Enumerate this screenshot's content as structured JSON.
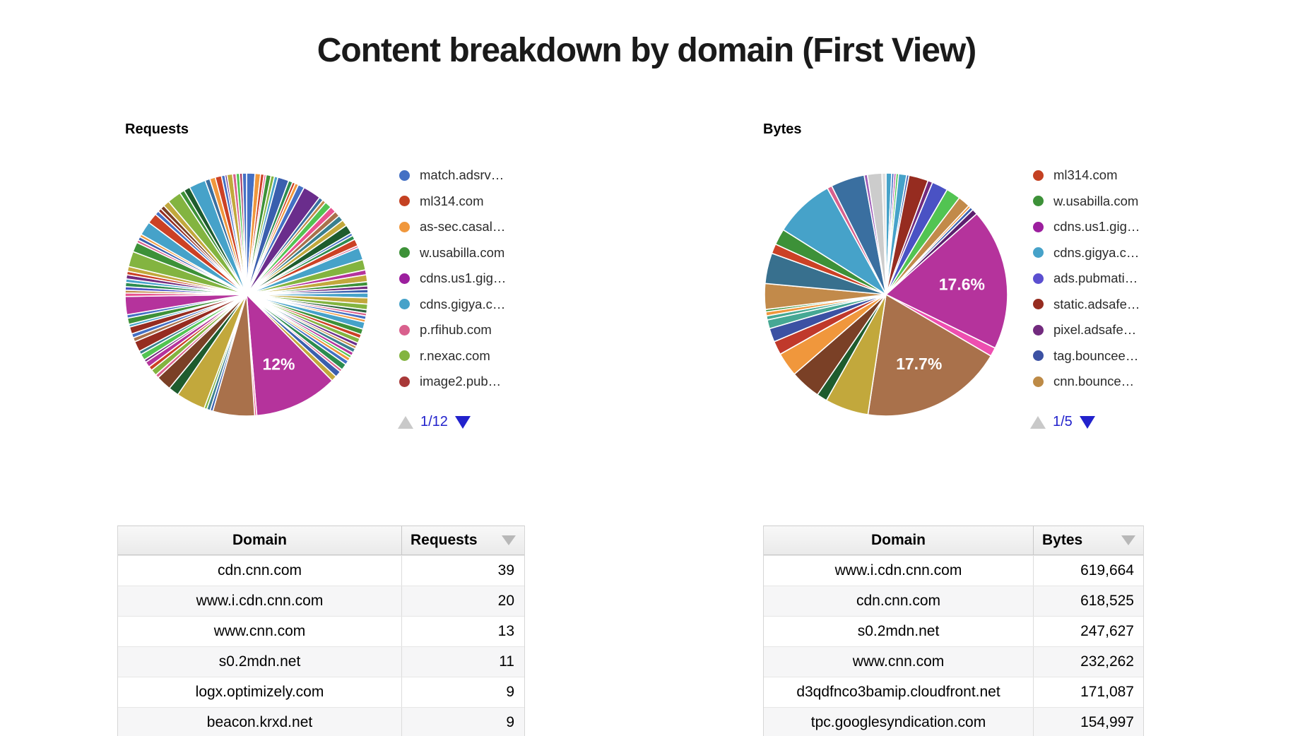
{
  "page_title": "Content breakdown by domain (First View)",
  "chart_data": [
    {
      "type": "pie",
      "name": "requests-pie",
      "title": "Requests",
      "legend_position": "right",
      "legend_page": "1/12",
      "legend": [
        {
          "label": "match.adsrv…",
          "color": "#4470c4"
        },
        {
          "label": "ml314.com",
          "color": "#c44122"
        },
        {
          "label": "as-sec.casal…",
          "color": "#f0973c"
        },
        {
          "label": "w.usabilla.com",
          "color": "#3d9138"
        },
        {
          "label": "cdns.us1.gig…",
          "color": "#9c1f9e"
        },
        {
          "label": "cdns.gigya.c…",
          "color": "#46a2c9"
        },
        {
          "label": "p.rfihub.com",
          "color": "#d9608d"
        },
        {
          "label": "r.nexac.com",
          "color": "#83b440"
        },
        {
          "label": "image2.pub…",
          "color": "#a83838"
        }
      ],
      "labeled_slices": [
        {
          "value_pct": 12,
          "label": "12%",
          "color": "#b5339c"
        }
      ],
      "slices": [
        [
          "#4470c4",
          1.2
        ],
        [
          "#f0973c",
          0.8
        ],
        [
          "#cc4125",
          0.5
        ],
        [
          "#e8538f",
          0.3
        ],
        [
          "#3d9138",
          0.7
        ],
        [
          "#83b440",
          0.5
        ],
        [
          "#46a2c9",
          0.5
        ],
        [
          "#3a5fae",
          1.6
        ],
        [
          "#2c8c4f",
          0.6
        ],
        [
          "#cc4125",
          0.4
        ],
        [
          "#f0973c",
          0.5
        ],
        [
          "#4470c4",
          0.9
        ],
        [
          "#6a2d8c",
          2.6
        ],
        [
          "#3a6fa0",
          0.6
        ],
        [
          "#c28a4a",
          0.5
        ],
        [
          "#52c452",
          1.0
        ],
        [
          "#e8538f",
          0.9
        ],
        [
          "#a9714b",
          0.8
        ],
        [
          "#3a7f8e",
          0.8
        ],
        [
          "#c2a83c",
          0.9
        ],
        [
          "#1e5c2e",
          1.3
        ],
        [
          "#4470c4",
          0.4
        ],
        [
          "#2c8c4f",
          0.6
        ],
        [
          "#cc4125",
          1.0
        ],
        [
          "#d9608d",
          0.3
        ],
        [
          "#46a2c9",
          1.8
        ],
        [
          "#83b440",
          1.5
        ],
        [
          "#b5339c",
          0.7
        ],
        [
          "#c2a83c",
          1.0
        ],
        [
          "#3d9138",
          0.6
        ],
        [
          "#722a7e",
          0.5
        ],
        [
          "#3a5fae",
          0.5
        ],
        [
          "#46a2c9",
          0.7
        ],
        [
          "#c2a83c",
          0.9
        ],
        [
          "#83b440",
          0.8
        ],
        [
          "#2c633c",
          0.5
        ],
        [
          "#d9608d",
          0.4
        ],
        [
          "#4470c4",
          0.5
        ],
        [
          "#f0973c",
          0.4
        ],
        [
          "#46a2c9",
          1.0
        ],
        [
          "#3d9138",
          0.8
        ],
        [
          "#cc4125",
          0.6
        ],
        [
          "#83b440",
          0.7
        ],
        [
          "#6a2d8c",
          0.5
        ],
        [
          "#c28a4a",
          0.4
        ],
        [
          "#3a7f8e",
          0.6
        ],
        [
          "#b5339c",
          0.5
        ],
        [
          "#52c452",
          0.4
        ],
        [
          "#f0973c",
          0.5
        ],
        [
          "#4470c4",
          0.6
        ],
        [
          "#2c8c4f",
          0.9
        ],
        [
          "#d9608d",
          0.4
        ],
        [
          "#3a5fae",
          0.9
        ],
        [
          "#c2a83c",
          0.8
        ],
        [
          "#b5339c",
          12,
          "12%"
        ],
        [
          "#e8538f",
          0.3
        ],
        [
          "#a9714b",
          6.0
        ],
        [
          "#3a5fae",
          0.4
        ],
        [
          "#3a7f8e",
          0.5
        ],
        [
          "#83b440",
          0.4
        ],
        [
          "#c2a83c",
          4.2
        ],
        [
          "#1e5c2e",
          1.5
        ],
        [
          "#7a4026",
          2.2
        ],
        [
          "#d9608d",
          0.5
        ],
        [
          "#83b440",
          0.9
        ],
        [
          "#cc4125",
          0.6
        ],
        [
          "#b5339c",
          0.8
        ],
        [
          "#722a7e",
          0.4
        ],
        [
          "#52c452",
          0.9
        ],
        [
          "#3a7f8e",
          0.5
        ],
        [
          "#962c20",
          1.5
        ],
        [
          "#a9714b",
          0.6
        ],
        [
          "#4470c4",
          0.6
        ],
        [
          "#962c20",
          1.0
        ],
        [
          "#46a2c9",
          0.4
        ],
        [
          "#3d9138",
          0.9
        ],
        [
          "#4470c4",
          0.5
        ],
        [
          "#b5339c",
          2.6
        ],
        [
          "#e8538f",
          0.5
        ],
        [
          "#c28a4a",
          0.4
        ],
        [
          "#4a52c4",
          0.5
        ],
        [
          "#2c8c4f",
          0.6
        ],
        [
          "#46a2c9",
          0.5
        ],
        [
          "#722a7e",
          0.6
        ],
        [
          "#cc4125",
          0.5
        ],
        [
          "#c2a83c",
          0.7
        ],
        [
          "#83b440",
          2.2
        ],
        [
          "#3d9138",
          1.4
        ],
        [
          "#d9608d",
          0.4
        ],
        [
          "#3a5fae",
          0.5
        ],
        [
          "#f0973c",
          0.4
        ],
        [
          "#46a2c9",
          2.0
        ],
        [
          "#cc4125",
          1.5
        ],
        [
          "#4470c4",
          0.6
        ],
        [
          "#962c20",
          0.5
        ],
        [
          "#7a4026",
          0.6
        ],
        [
          "#c2a83c",
          0.9
        ],
        [
          "#83b440",
          2.0
        ],
        [
          "#3d9138",
          0.7
        ],
        [
          "#1e5c2e",
          0.9
        ],
        [
          "#46a2c9",
          2.4
        ],
        [
          "#3a6fa0",
          0.7
        ],
        [
          "#f0973c",
          0.8
        ],
        [
          "#cc4125",
          0.9
        ],
        [
          "#4470c4",
          0.5
        ],
        [
          "#6a2d8c",
          0.3
        ],
        [
          "#c2a83c",
          0.8
        ],
        [
          "#d9608d",
          0.5
        ],
        [
          "#52c452",
          0.5
        ],
        [
          "#a53860",
          0.4
        ],
        [
          "#4470c4",
          0.6
        ]
      ]
    },
    {
      "type": "pie",
      "name": "bytes-pie",
      "title": "Bytes",
      "legend_position": "right",
      "legend_page": "1/5",
      "legend": [
        {
          "label": "ml314.com",
          "color": "#c44122"
        },
        {
          "label": "w.usabilla.com",
          "color": "#3d9138"
        },
        {
          "label": "cdns.us1.gig…",
          "color": "#9c1f9e"
        },
        {
          "label": "cdns.gigya.c…",
          "color": "#46a2c9"
        },
        {
          "label": "ads.pubmati…",
          "color": "#5b4fd0"
        },
        {
          "label": "static.adsafe…",
          "color": "#962c20"
        },
        {
          "label": "pixel.adsafe…",
          "color": "#722a7e"
        },
        {
          "label": "tag.bouncee…",
          "color": "#3c51a3"
        },
        {
          "label": "cnn.bounce…",
          "color": "#bd8a46"
        }
      ],
      "labeled_slices": [
        {
          "value_pct": 17.6,
          "label": "17.6%",
          "color": "#b5339c"
        },
        {
          "value_pct": 17.7,
          "label": "17.7%",
          "color": "#a9714b"
        }
      ],
      "slices": [
        [
          "#46a2c9",
          0.7
        ],
        [
          "#4470c4",
          0.3
        ],
        [
          "#b5339c",
          0.25
        ],
        [
          "#52c452",
          0.3
        ],
        [
          "#46a2c9",
          1.0
        ],
        [
          "#3a5fae",
          0.3
        ],
        [
          "#962c20",
          2.4
        ],
        [
          "#722a7e",
          0.6
        ],
        [
          "#4a52c4",
          2.0
        ],
        [
          "#52c452",
          1.8
        ],
        [
          "#c28a4a",
          1.5
        ],
        [
          "#f0973c",
          0.3
        ],
        [
          "#3a5fae",
          0.4
        ],
        [
          "#5c1f6e",
          0.7
        ],
        [
          "#b5339c",
          17.6,
          "17.6%"
        ],
        [
          "#ee4fb0",
          1.1
        ],
        [
          "#a9714b",
          17.7,
          "17.7%"
        ],
        [
          "#c2a83c",
          5.4
        ],
        [
          "#1e5c2e",
          1.3
        ],
        [
          "#7a4026",
          3.8
        ],
        [
          "#f0973c",
          3.0
        ],
        [
          "#c0392b",
          1.7
        ],
        [
          "#3c51a3",
          1.7
        ],
        [
          "#46a894",
          1.1
        ],
        [
          "#46a894",
          0.5
        ],
        [
          "#f0973c",
          0.5
        ],
        [
          "#3d9138",
          0.3
        ],
        [
          "#c28a4a",
          3.2
        ],
        [
          "#38708e",
          3.8
        ],
        [
          "#cc4125",
          1.2
        ],
        [
          "#3d9138",
          2.0
        ],
        [
          "#46a2c9",
          7.5
        ],
        [
          "#d9608d",
          0.6
        ],
        [
          "#3a6fa0",
          4.2
        ],
        [
          "#9b59b6",
          0.4
        ],
        [
          "#cccccc",
          1.8
        ],
        [
          "#e0e0e0",
          0.5
        ]
      ]
    },
    {
      "type": "table",
      "name": "requests-table",
      "columns": [
        "Domain",
        "Requests"
      ],
      "sort": "desc",
      "rows": [
        [
          "cdn.cnn.com",
          "39"
        ],
        [
          "www.i.cdn.cnn.com",
          "20"
        ],
        [
          "www.cnn.com",
          "13"
        ],
        [
          "s0.2mdn.net",
          "11"
        ],
        [
          "logx.optimizely.com",
          "9"
        ],
        [
          "beacon.krxd.net",
          "9"
        ]
      ]
    },
    {
      "type": "table",
      "name": "bytes-table",
      "columns": [
        "Domain",
        "Bytes"
      ],
      "sort": "desc",
      "rows": [
        [
          "www.i.cdn.cnn.com",
          "619,664"
        ],
        [
          "cdn.cnn.com",
          "618,525"
        ],
        [
          "s0.2mdn.net",
          "247,627"
        ],
        [
          "www.cnn.com",
          "232,262"
        ],
        [
          "d3qdfnco3bamip.cloudfront.net",
          "171,087"
        ],
        [
          "tpc.googlesyndication.com",
          "154,997"
        ]
      ]
    }
  ]
}
